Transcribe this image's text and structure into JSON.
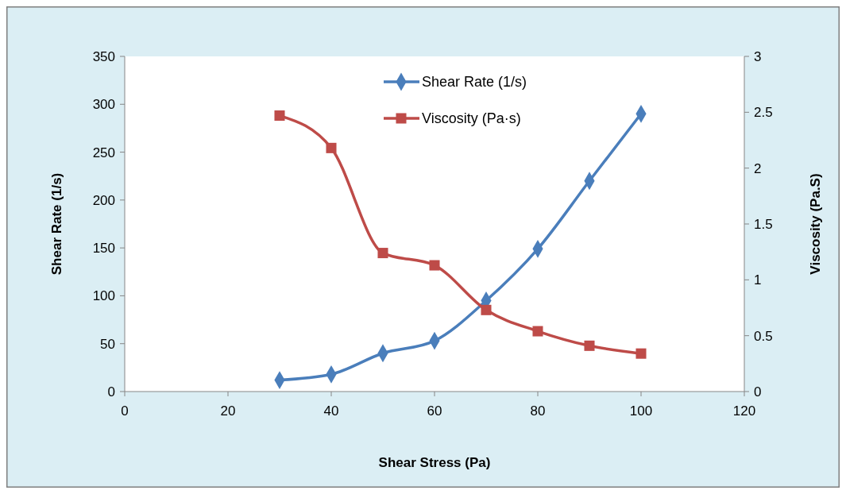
{
  "chart_data": {
    "type": "line",
    "xlabel": "Shear Stress (Pa)",
    "ylabel": "Shear Rate (1/s)",
    "y2label": "Viscosity (Pa.S)",
    "x": [
      30,
      40,
      50,
      60,
      70,
      80,
      90,
      100
    ],
    "series": [
      {
        "name": "Shear Rate (1/s)",
        "color": "#4a7ebb",
        "marker": "diamond",
        "values": [
          12,
          18,
          40,
          53,
          95,
          149,
          220,
          290
        ]
      },
      {
        "name": "Viscosity (Pa·s)",
        "color": "#be4b48",
        "marker": "square",
        "axis": "y2",
        "values": [
          2.47,
          2.18,
          1.24,
          1.13,
          0.73,
          0.54,
          0.41,
          0.34
        ]
      }
    ],
    "xlim": [
      0,
      120
    ],
    "xticks": [
      0,
      20,
      40,
      60,
      80,
      100,
      120
    ],
    "ylim": [
      0,
      350
    ],
    "yticks": [
      0,
      50,
      100,
      150,
      200,
      250,
      300,
      350
    ],
    "y2lim": [
      0,
      3
    ],
    "y2ticks": [
      0,
      0.5,
      1,
      1.5,
      2,
      2.5,
      3
    ],
    "legend": "top",
    "grid": false
  }
}
